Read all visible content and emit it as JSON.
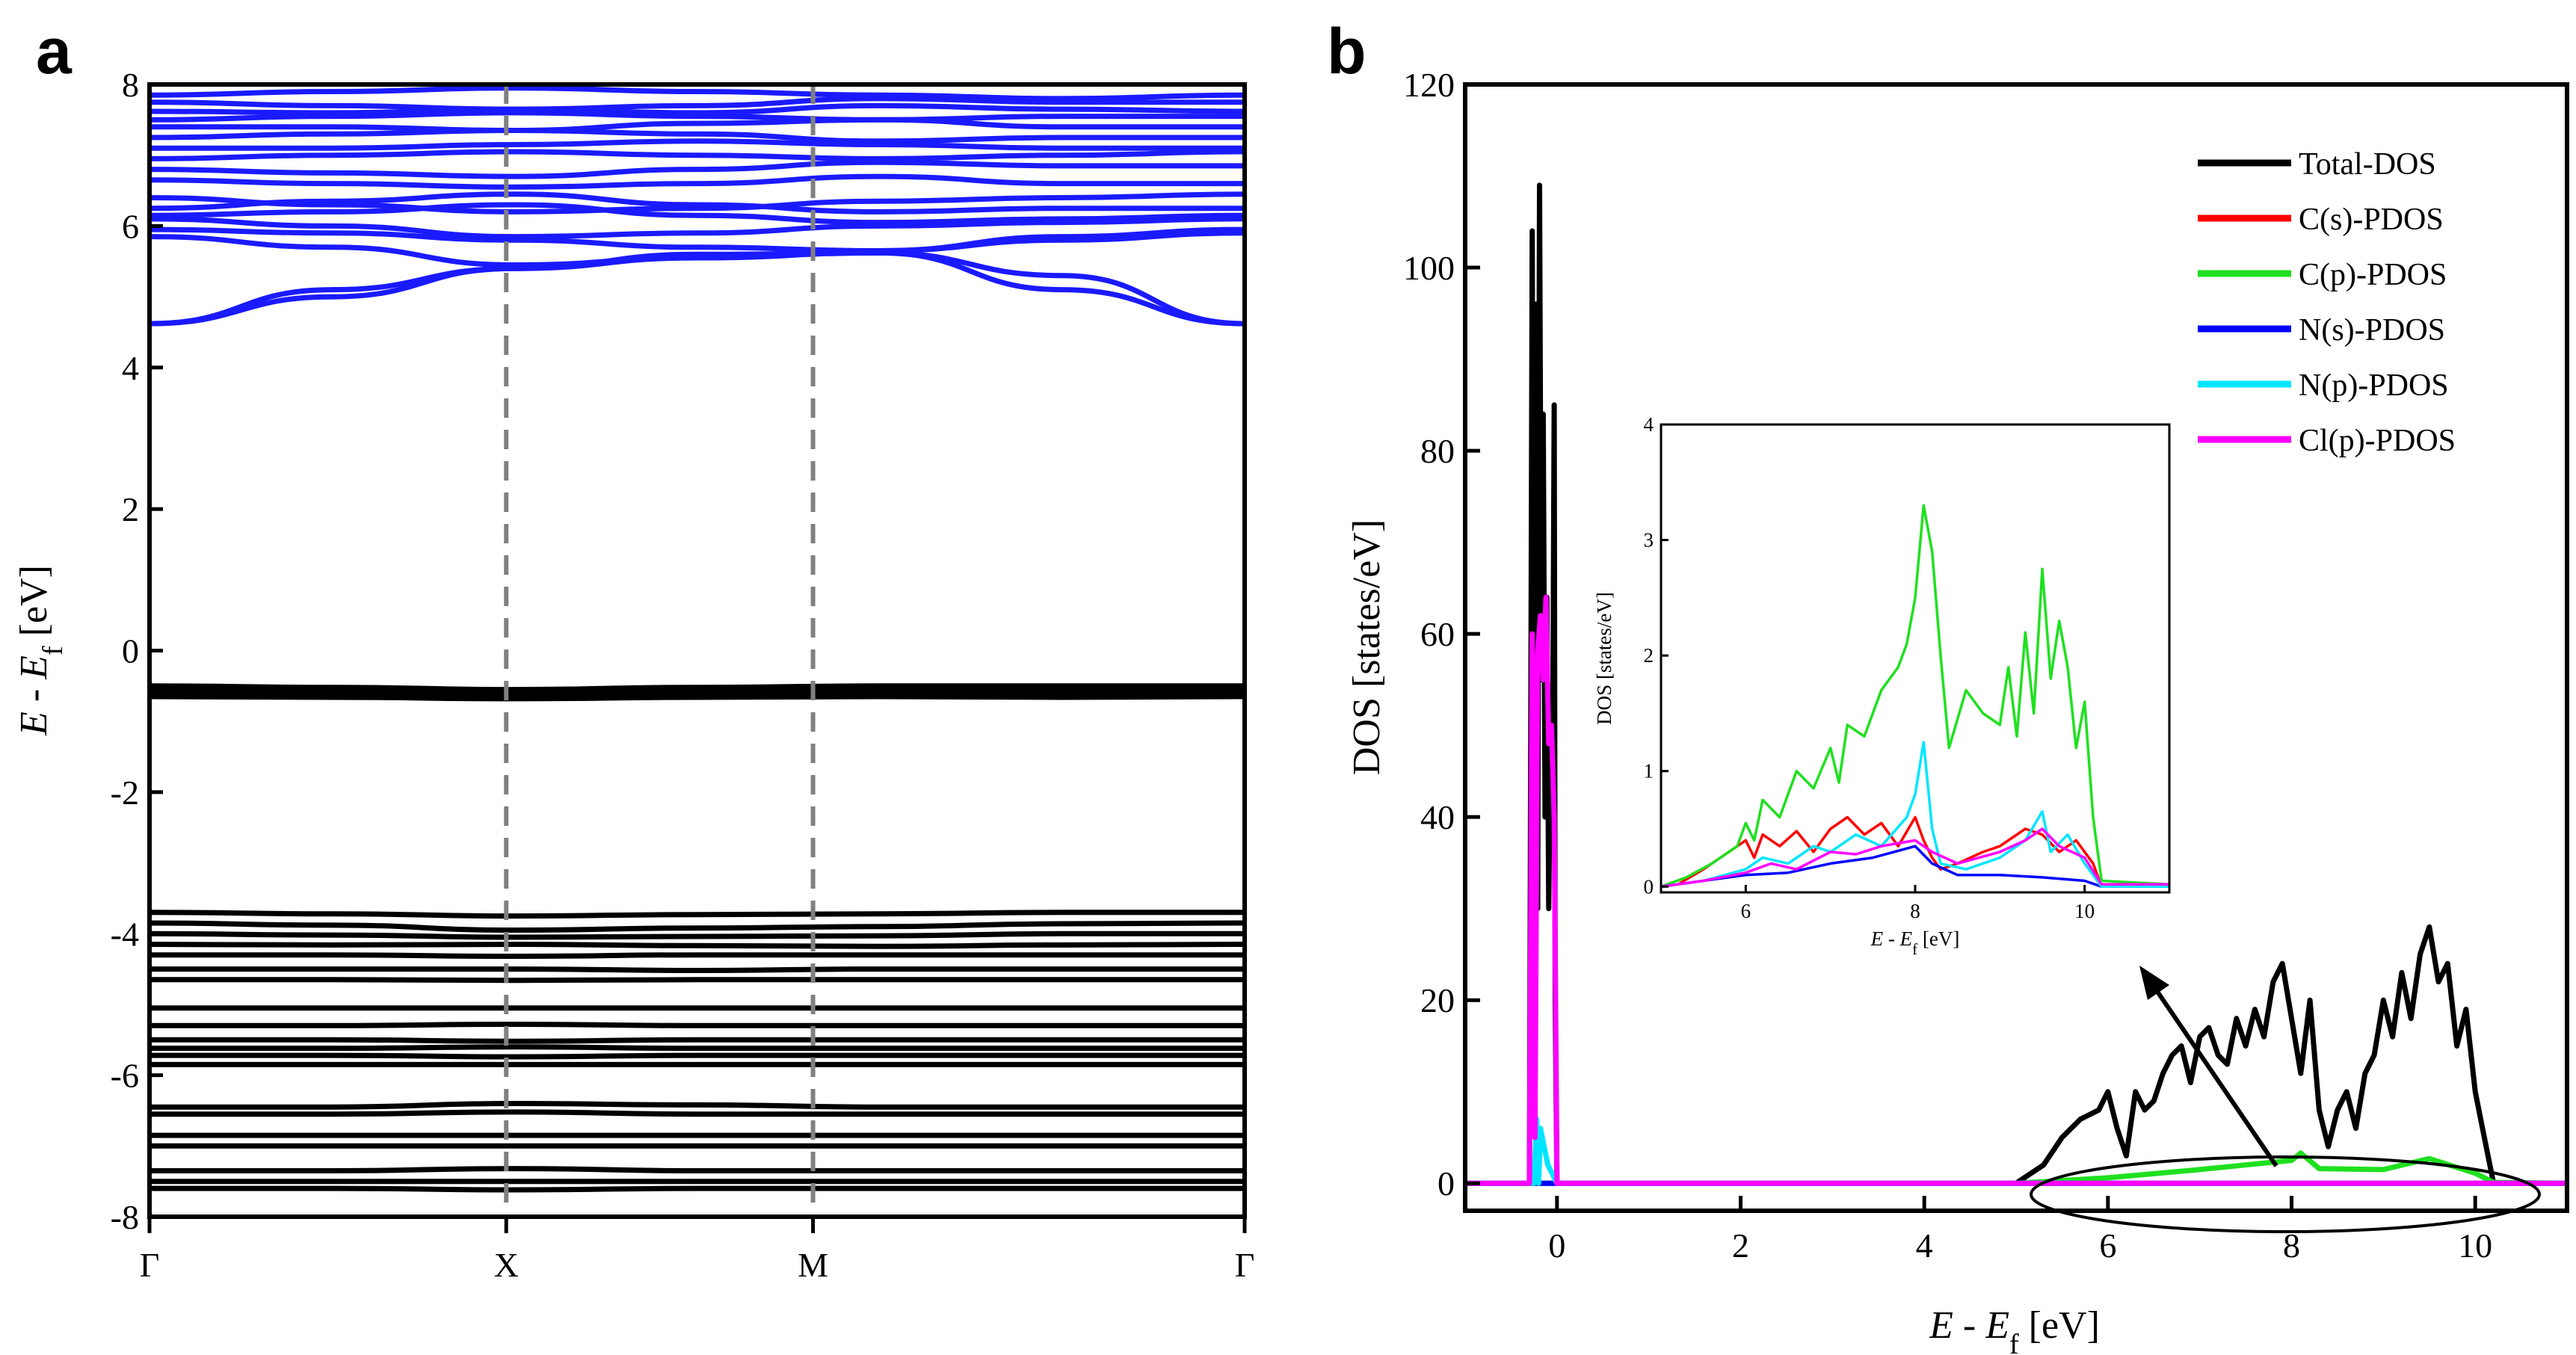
{
  "chart_data": [
    {
      "panel": "a",
      "type": "line",
      "title": "",
      "xlabel": "",
      "ylabel": {
        "main": "E",
        "sep": " - E",
        "sub": "f",
        "unit": " [eV]"
      },
      "ylim": [
        -8,
        8
      ],
      "yticks": [
        -8,
        -6,
        -4,
        -2,
        0,
        2,
        4,
        6,
        8
      ],
      "ytick_labels": [
        "-8",
        "-6",
        "-4",
        "-2",
        "0",
        "2",
        "4",
        "6",
        "8"
      ],
      "k_points": [
        {
          "label": "Γ",
          "x": 0
        },
        {
          "label": "X",
          "x": 1
        },
        {
          "label": "M",
          "x": 1.86
        },
        {
          "label": "Γ",
          "x": 3.07
        }
      ],
      "dashed_lines_at": [
        1,
        1.86
      ],
      "conduction_band_color": "#1a1aff",
      "valence_band_color": "#000000",
      "conduction_bands": [
        [
          4.62,
          5.0,
          5.4,
          5.55,
          5.62,
          5.1,
          4.62
        ],
        [
          4.62,
          5.1,
          5.4,
          5.6,
          5.62,
          5.3,
          4.62
        ],
        [
          5.85,
          5.7,
          5.45,
          5.55,
          5.65,
          5.8,
          5.9
        ],
        [
          5.95,
          5.9,
          5.8,
          5.7,
          5.65,
          5.85,
          5.95
        ],
        [
          6.1,
          6.0,
          5.85,
          5.9,
          6.0,
          6.05,
          6.1
        ],
        [
          6.15,
          6.2,
          6.3,
          6.15,
          6.05,
          6.1,
          6.15
        ],
        [
          6.25,
          6.35,
          6.45,
          6.3,
          6.2,
          6.25,
          6.25
        ],
        [
          6.4,
          6.3,
          6.2,
          6.25,
          6.35,
          6.4,
          6.45
        ],
        [
          6.65,
          6.6,
          6.55,
          6.6,
          6.7,
          6.6,
          6.6
        ],
        [
          6.8,
          6.75,
          6.7,
          6.8,
          6.9,
          6.85,
          6.85
        ],
        [
          6.95,
          7.0,
          7.05,
          7.0,
          6.95,
          7.0,
          7.05
        ],
        [
          7.1,
          7.1,
          7.15,
          7.2,
          7.15,
          7.1,
          7.1
        ],
        [
          7.25,
          7.3,
          7.35,
          7.3,
          7.2,
          7.25,
          7.25
        ],
        [
          7.4,
          7.4,
          7.35,
          7.45,
          7.5,
          7.4,
          7.4
        ],
        [
          7.5,
          7.55,
          7.6,
          7.55,
          7.5,
          7.55,
          7.55
        ],
        [
          7.62,
          7.6,
          7.65,
          7.6,
          7.7,
          7.65,
          7.62
        ],
        [
          7.75,
          7.7,
          7.65,
          7.7,
          7.8,
          7.75,
          7.75
        ],
        [
          7.85,
          7.9,
          7.95,
          7.9,
          7.85,
          7.8,
          7.85
        ]
      ],
      "valence_bands": [
        [
          -0.5,
          -0.52,
          -0.55,
          -0.52,
          -0.5,
          -0.5,
          -0.5
        ],
        [
          -0.55,
          -0.55,
          -0.58,
          -0.55,
          -0.55,
          -0.55,
          -0.55
        ],
        [
          -0.6,
          -0.62,
          -0.62,
          -0.6,
          -0.6,
          -0.6,
          -0.6
        ],
        [
          -0.65,
          -0.66,
          -0.68,
          -0.66,
          -0.65,
          -0.66,
          -0.65
        ],
        [
          -3.7,
          -3.72,
          -3.75,
          -3.73,
          -3.72,
          -3.7,
          -3.7
        ],
        [
          -3.85,
          -3.88,
          -3.95,
          -3.92,
          -3.9,
          -3.86,
          -3.85
        ],
        [
          -4.0,
          -4.02,
          -4.05,
          -4.04,
          -4.03,
          -4.0,
          -4.0
        ],
        [
          -4.15,
          -4.16,
          -4.15,
          -4.17,
          -4.18,
          -4.16,
          -4.15
        ],
        [
          -4.3,
          -4.3,
          -4.32,
          -4.3,
          -4.3,
          -4.3,
          -4.3
        ],
        [
          -4.5,
          -4.5,
          -4.5,
          -4.52,
          -4.5,
          -4.5,
          -4.5
        ],
        [
          -4.65,
          -4.65,
          -4.66,
          -4.65,
          -4.65,
          -4.65,
          -4.65
        ],
        [
          -5.05,
          -5.05,
          -5.05,
          -5.05,
          -5.05,
          -5.05,
          -5.05
        ],
        [
          -5.3,
          -5.3,
          -5.28,
          -5.3,
          -5.3,
          -5.3,
          -5.3
        ],
        [
          -5.5,
          -5.5,
          -5.52,
          -5.5,
          -5.5,
          -5.5,
          -5.5
        ],
        [
          -5.62,
          -5.62,
          -5.6,
          -5.62,
          -5.62,
          -5.62,
          -5.62
        ],
        [
          -5.72,
          -5.72,
          -5.74,
          -5.72,
          -5.72,
          -5.72,
          -5.72
        ],
        [
          -5.85,
          -5.85,
          -5.85,
          -5.85,
          -5.85,
          -5.85,
          -5.85
        ],
        [
          -6.45,
          -6.45,
          -6.4,
          -6.42,
          -6.45,
          -6.45,
          -6.45
        ],
        [
          -6.55,
          -6.55,
          -6.52,
          -6.55,
          -6.55,
          -6.55,
          -6.55
        ],
        [
          -6.85,
          -6.85,
          -6.85,
          -6.85,
          -6.85,
          -6.85,
          -6.85
        ],
        [
          -7.0,
          -7.0,
          -7.0,
          -7.0,
          -7.0,
          -7.0,
          -7.0
        ],
        [
          -7.35,
          -7.35,
          -7.32,
          -7.35,
          -7.35,
          -7.35,
          -7.35
        ],
        [
          -7.5,
          -7.5,
          -7.5,
          -7.5,
          -7.5,
          -7.5,
          -7.5
        ],
        [
          -7.6,
          -7.6,
          -7.62,
          -7.6,
          -7.6,
          -7.6,
          -7.6
        ]
      ]
    },
    {
      "panel": "b",
      "type": "line",
      "title": "",
      "xlabel": {
        "main": "E",
        "sep": " - E",
        "sub": "f",
        "unit": " [eV]"
      },
      "ylabel": "DOS [states/eV]",
      "xlim": [
        -1,
        11
      ],
      "ylim": [
        -3,
        120
      ],
      "xticks": [
        0,
        2,
        4,
        6,
        8,
        10
      ],
      "xtick_labels": [
        "0",
        "2",
        "4",
        "6",
        "8",
        "10"
      ],
      "yticks": [
        0,
        20,
        40,
        60,
        80,
        100,
        120
      ],
      "ytick_labels": [
        "0",
        "20",
        "40",
        "60",
        "80",
        "100",
        "120"
      ],
      "legend_position": "top-right",
      "series": [
        {
          "name": "Total-DOS",
          "color": "#000000",
          "x": [
            -1,
            -0.3,
            -0.27,
            -0.25,
            -0.23,
            -0.21,
            -0.19,
            -0.17,
            -0.15,
            -0.13,
            -0.11,
            -0.09,
            -0.07,
            -0.05,
            -0.03,
            -0.02,
            0.0,
            5.0,
            5.3,
            5.5,
            5.7,
            5.9,
            6.0,
            6.1,
            6.2,
            6.3,
            6.4,
            6.5,
            6.6,
            6.7,
            6.8,
            6.9,
            7.0,
            7.1,
            7.2,
            7.3,
            7.4,
            7.5,
            7.6,
            7.7,
            7.8,
            7.9,
            8.0,
            8.1,
            8.2,
            8.3,
            8.4,
            8.5,
            8.6,
            8.7,
            8.8,
            8.9,
            9.0,
            9.1,
            9.2,
            9.3,
            9.4,
            9.5,
            9.6,
            9.7,
            9.8,
            9.9,
            10.0,
            10.1,
            10.2,
            10.3,
            11
          ],
          "y": [
            0,
            0,
            104,
            20,
            96,
            30,
            109,
            55,
            84,
            40,
            64,
            30,
            51,
            40,
            85,
            20,
            0,
            0,
            2,
            5,
            7,
            8,
            10,
            6,
            3,
            10,
            8,
            9,
            12,
            14,
            15,
            11,
            16,
            17,
            14,
            13,
            18,
            15,
            19,
            16,
            22,
            24,
            18,
            12,
            20,
            8,
            4,
            8,
            10,
            6,
            12,
            14,
            20,
            16,
            23,
            18,
            25,
            28,
            22,
            24,
            15,
            19,
            10,
            5,
            0,
            0,
            0
          ]
        },
        {
          "name": "C(s)-PDOS",
          "color": "#ff0000",
          "x": [
            -1,
            11
          ],
          "y": [
            0,
            0
          ]
        },
        {
          "name": "C(p)-PDOS",
          "color": "#1fe01f",
          "x": [
            -1,
            5.0,
            6.0,
            7.0,
            7.5,
            8.0,
            8.1,
            8.3,
            9.0,
            9.5,
            10.0,
            10.2,
            11
          ],
          "y": [
            0,
            0,
            0.6,
            1.5,
            2.0,
            2.5,
            3.3,
            1.6,
            1.5,
            2.7,
            1.1,
            0.1,
            0
          ]
        },
        {
          "name": "N(s)-PDOS",
          "color": "#0000ff",
          "x": [
            -1,
            11
          ],
          "y": [
            0,
            0
          ]
        },
        {
          "name": "N(p)-PDOS",
          "color": "#00e5ff",
          "x": [
            -1,
            -0.25,
            -0.22,
            -0.2,
            -0.18,
            -0.1,
            0.0,
            11
          ],
          "y": [
            0,
            0,
            7,
            0,
            6,
            2,
            0,
            0
          ]
        },
        {
          "name": "Cl(p)-PDOS",
          "color": "#ff00ff",
          "x": [
            -1,
            -0.3,
            -0.27,
            -0.24,
            -0.21,
            -0.18,
            -0.15,
            -0.12,
            -0.09,
            -0.06,
            -0.03,
            0.0,
            11
          ],
          "y": [
            0,
            0,
            60,
            5,
            58,
            62,
            55,
            64,
            48,
            50,
            40,
            0,
            0
          ]
        }
      ],
      "inset": {
        "xlabel": {
          "main": "E",
          "sep": " - E",
          "sub": "f",
          "unit": " [eV]"
        },
        "ylabel": "DOS [states/eV]",
        "xlim": [
          5,
          11
        ],
        "ylim": [
          -0.05,
          4
        ],
        "xticks": [
          6,
          8,
          10
        ],
        "xtick_labels": [
          "6",
          "8",
          "10"
        ],
        "yticks": [
          0,
          1,
          2,
          3,
          4
        ],
        "ytick_labels": [
          "0",
          "1",
          "2",
          "3",
          "4"
        ],
        "series": [
          {
            "name": "C(s)-PDOS",
            "color": "#ff0000",
            "x": [
              5.0,
              5.2,
              5.5,
              5.8,
              6.0,
              6.1,
              6.2,
              6.4,
              6.6,
              6.8,
              7.0,
              7.2,
              7.4,
              7.6,
              7.8,
              8.0,
              8.1,
              8.2,
              8.3,
              8.5,
              8.8,
              9.0,
              9.3,
              9.5,
              9.7,
              9.9,
              10.1,
              10.2,
              11.0
            ],
            "y": [
              0,
              0.02,
              0.15,
              0.3,
              0.4,
              0.25,
              0.45,
              0.35,
              0.48,
              0.3,
              0.5,
              0.6,
              0.45,
              0.55,
              0.35,
              0.6,
              0.4,
              0.25,
              0.15,
              0.2,
              0.3,
              0.35,
              0.5,
              0.45,
              0.3,
              0.4,
              0.2,
              0,
              0
            ]
          },
          {
            "name": "C(p)-PDOS",
            "color": "#1fe01f",
            "x": [
              5.0,
              5.3,
              5.6,
              5.9,
              6.0,
              6.1,
              6.2,
              6.4,
              6.6,
              6.8,
              7.0,
              7.1,
              7.2,
              7.4,
              7.6,
              7.8,
              7.9,
              8.0,
              8.1,
              8.2,
              8.3,
              8.4,
              8.6,
              8.8,
              9.0,
              9.1,
              9.2,
              9.3,
              9.4,
              9.5,
              9.6,
              9.7,
              9.8,
              9.9,
              10.0,
              10.1,
              10.2,
              11.0
            ],
            "y": [
              0,
              0.08,
              0.2,
              0.35,
              0.55,
              0.4,
              0.75,
              0.6,
              1.0,
              0.85,
              1.2,
              0.9,
              1.4,
              1.3,
              1.7,
              1.9,
              2.1,
              2.5,
              3.3,
              2.9,
              2.0,
              1.2,
              1.7,
              1.5,
              1.4,
              1.9,
              1.3,
              2.2,
              1.5,
              2.75,
              1.8,
              2.3,
              1.9,
              1.2,
              1.6,
              0.6,
              0.05,
              0.02
            ]
          },
          {
            "name": "N(s)-PDOS",
            "color": "#0000ff",
            "x": [
              5.0,
              5.5,
              6.0,
              6.5,
              7.0,
              7.5,
              8.0,
              8.2,
              8.5,
              9.0,
              9.5,
              10.0,
              10.2,
              11.0
            ],
            "y": [
              0,
              0.05,
              0.1,
              0.12,
              0.2,
              0.25,
              0.35,
              0.2,
              0.1,
              0.1,
              0.08,
              0.05,
              0,
              0
            ]
          },
          {
            "name": "N(p)-PDOS",
            "color": "#00e5ff",
            "x": [
              5.0,
              5.5,
              6.0,
              6.2,
              6.5,
              6.8,
              7.0,
              7.3,
              7.6,
              7.9,
              8.0,
              8.1,
              8.2,
              8.3,
              8.6,
              9.0,
              9.3,
              9.5,
              9.6,
              9.8,
              10.0,
              10.2,
              11.0
            ],
            "y": [
              0,
              0.05,
              0.15,
              0.25,
              0.2,
              0.35,
              0.3,
              0.45,
              0.35,
              0.6,
              0.8,
              1.25,
              0.5,
              0.2,
              0.15,
              0.25,
              0.4,
              0.65,
              0.3,
              0.45,
              0.2,
              0,
              0
            ]
          },
          {
            "name": "Cl(p)-PDOS",
            "color": "#ff00ff",
            "x": [
              5.0,
              5.5,
              6.0,
              6.3,
              6.6,
              7.0,
              7.3,
              7.6,
              8.0,
              8.2,
              8.5,
              9.0,
              9.3,
              9.5,
              9.7,
              10.0,
              10.2,
              11.0
            ],
            "y": [
              0,
              0.05,
              0.12,
              0.2,
              0.15,
              0.3,
              0.28,
              0.35,
              0.4,
              0.3,
              0.2,
              0.3,
              0.4,
              0.5,
              0.35,
              0.25,
              0.02,
              0.02
            ]
          }
        ]
      }
    }
  ],
  "panel_labels": {
    "a": "a",
    "b": "b"
  }
}
